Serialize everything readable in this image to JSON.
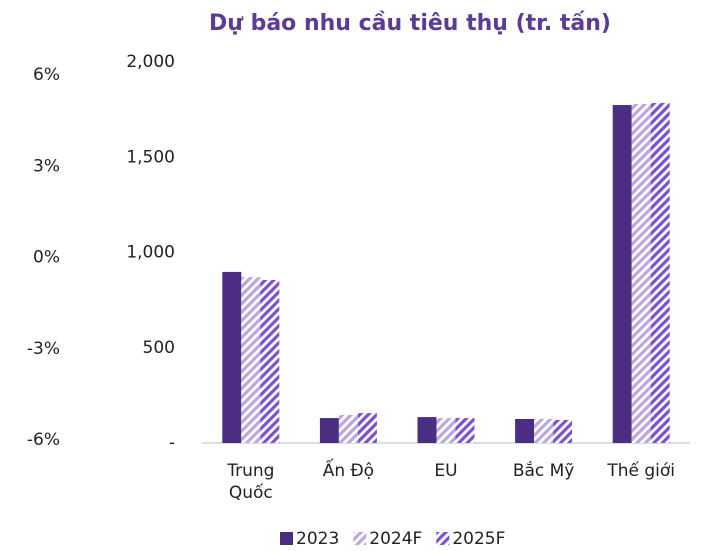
{
  "chart_data": {
    "type": "bar",
    "title": "Dự báo nhu cầu tiêu thụ (tr. tấn)",
    "categories": [
      "Trung Quốc",
      "Ấn Độ",
      "EU",
      "Bắc Mỹ",
      "Thế giới"
    ],
    "series": [
      {
        "name": "2023",
        "color": "#4b2e83",
        "hatched": false,
        "values": [
          898,
          131,
          136,
          126,
          1774
        ]
      },
      {
        "name": "2024F",
        "color": "#b9a8e0",
        "hatched": true,
        "values": [
          871,
          147,
          131,
          126,
          1780
        ]
      },
      {
        "name": "2025F",
        "color": "#7b4fd6",
        "hatched": true,
        "values": [
          856,
          157,
          131,
          121,
          1785
        ]
      }
    ],
    "ylim": [
      0,
      2000
    ],
    "yticks": [
      {
        "value": 0,
        "label": "-"
      },
      500,
      {
        "value": 1000,
        "label": "1,000"
      },
      {
        "value": 1500,
        "label": "1,500"
      },
      {
        "value": 2000,
        "label": "2,000"
      }
    ],
    "y2lim": [
      -6,
      6
    ],
    "y2ticks": [
      {
        "value": -6,
        "label": "-6%"
      },
      {
        "value": -3,
        "label": "-3%"
      },
      {
        "value": 0,
        "label": "0%"
      },
      {
        "value": 3,
        "label": "3%"
      },
      {
        "value": 6,
        "label": "6%"
      }
    ],
    "legend": "bottom"
  }
}
